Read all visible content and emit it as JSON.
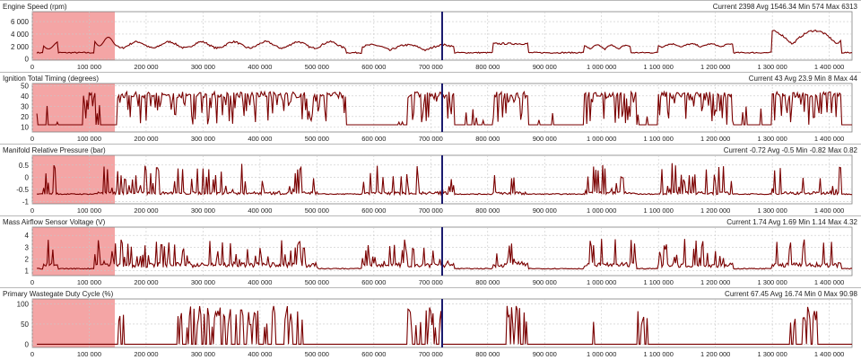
{
  "colors": {
    "trace": "#7a0000",
    "selection": "#f4a5a5",
    "cursor": "#1a1a6e",
    "grid": "#c8c8c8"
  },
  "x_axis": {
    "min": 0,
    "max": 1440000,
    "ticks": [
      0,
      100000,
      200000,
      300000,
      400000,
      500000,
      600000,
      700000,
      800000,
      900000,
      1000000,
      1100000,
      1200000,
      1300000,
      1400000
    ],
    "tick_labels": [
      "0",
      "100 000",
      "200 000",
      "300 000",
      "400 000",
      "500 000",
      "600 000",
      "700 000",
      "800 000",
      "900 000",
      "1 000 000",
      "1 100 000",
      "1 200 000",
      "1 300 000",
      "1 400 000"
    ]
  },
  "selection_range": [
    0,
    145000
  ],
  "cursor_x": 720000,
  "panels": [
    {
      "title": "Engine Speed (rpm)",
      "stats": "Current 2398 Avg 1546.34 Min 574 Max 6313",
      "y_ticks": [
        "0",
        "2 000",
        "4 000",
        "6 000"
      ],
      "y_values": [
        0,
        2000,
        4000,
        6000
      ],
      "ylim": [
        -200,
        7600
      ]
    },
    {
      "title": "Ignition Total Timing (degrees)",
      "stats": "Current 43 Avg 23.9 Min 8 Max 44",
      "y_ticks": [
        "10",
        "20",
        "30",
        "40",
        "50"
      ],
      "y_values": [
        10,
        20,
        30,
        40,
        50
      ],
      "ylim": [
        5,
        52
      ]
    },
    {
      "title": "Manifold Relative Pressure (bar)",
      "stats": "Current -0.72 Avg -0.5 Min -0.82 Max 0.82",
      "y_ticks": [
        "-1",
        "-0.5",
        "0",
        "0.5"
      ],
      "y_values": [
        -1,
        -0.5,
        0,
        0.5
      ],
      "ylim": [
        -1.1,
        0.9
      ]
    },
    {
      "title": "Mass Airflow Sensor Voltage (V)",
      "stats": "Current 1.74 Avg 1.69 Min 1.14 Max 4.32",
      "y_ticks": [
        "1",
        "2",
        "3",
        "4"
      ],
      "y_values": [
        1,
        2,
        3,
        4
      ],
      "ylim": [
        0.6,
        4.7
      ]
    },
    {
      "title": "Primary Wastegate Duty Cycle (%)",
      "stats": "Current 67.45 Avg 16.74 Min 0 Max 90.98",
      "y_ticks": [
        "0",
        "50",
        "100"
      ],
      "y_values": [
        0,
        50,
        100
      ],
      "ylim": [
        -8,
        112
      ]
    }
  ]
}
